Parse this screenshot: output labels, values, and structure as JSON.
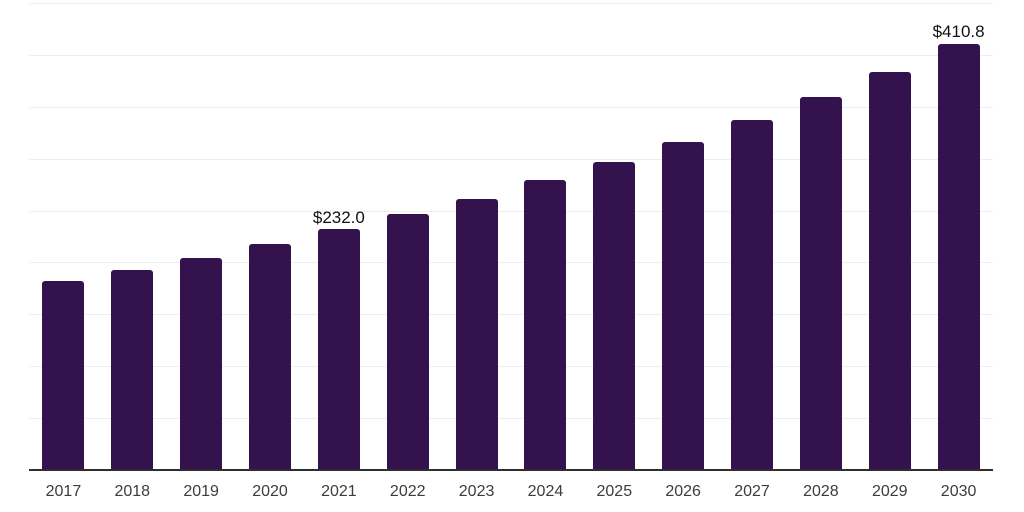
{
  "chart": {
    "background_color": "#ffffff",
    "bar_color": "#33124E",
    "gridline_color": "#ededed",
    "axis_line_color": "#2e2e2e",
    "data_label_color": "#111111",
    "tick_label_color": "#3c3c3c"
  },
  "chart_data": {
    "type": "bar",
    "categories": [
      "2017",
      "2018",
      "2019",
      "2020",
      "2021",
      "2022",
      "2023",
      "2024",
      "2025",
      "2026",
      "2027",
      "2028",
      "2029",
      "2030"
    ],
    "values": [
      182.0,
      192.5,
      204.0,
      217.5,
      232.0,
      246.5,
      261.5,
      279.0,
      296.5,
      316.5,
      337.0,
      359.0,
      383.5,
      410.8
    ],
    "data_labels": [
      {
        "index": 4,
        "text": "$232.0"
      },
      {
        "index": 13,
        "text": "$410.8"
      }
    ],
    "ylim": [
      0,
      450
    ],
    "gridline_step": 50,
    "grid": "horizontal",
    "legend_position": "none"
  }
}
